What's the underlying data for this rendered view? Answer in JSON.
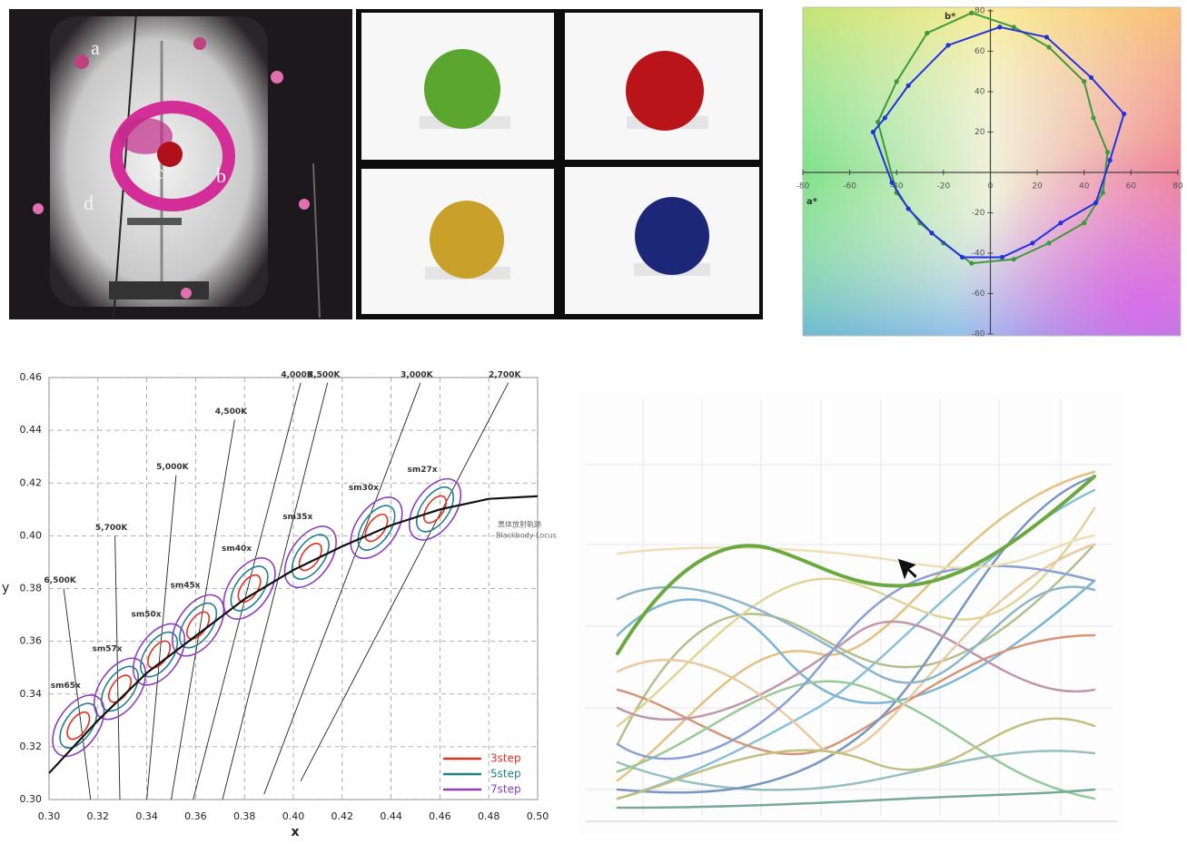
{
  "photo": {
    "labels": [
      "a",
      "b",
      "c",
      "d"
    ]
  },
  "chart_data": [
    {
      "type": "line",
      "xlabel": "a*",
      "ylabel": "b*",
      "xlim": [
        -80,
        80
      ],
      "ylim": [
        -80,
        80
      ],
      "xticks": [
        -80,
        -60,
        -40,
        -20,
        0,
        20,
        40,
        60,
        80
      ],
      "yticks": [
        80,
        60,
        40,
        20,
        -20,
        -40,
        -60,
        -80
      ],
      "series": [
        {
          "color": "#3f9a3a",
          "x": [
            -27,
            -8,
            10,
            25,
            40,
            44,
            50,
            48,
            40,
            25,
            10,
            -8,
            -20,
            -30,
            -40,
            -48,
            -40,
            -27
          ],
          "values": [
            69,
            79,
            72,
            62,
            45,
            27,
            10,
            -10,
            -25,
            -35,
            -43,
            -45,
            -35,
            -25,
            -10,
            25,
            45,
            69
          ]
        },
        {
          "color": "#2233dd",
          "x": [
            4,
            24,
            43,
            57,
            51,
            45,
            30,
            18,
            5,
            -12,
            -25,
            -35,
            -42,
            -50,
            -45,
            -35,
            -18,
            4
          ],
          "values": [
            72,
            67,
            47,
            29,
            6,
            -15,
            -25,
            -35,
            -42,
            -42,
            -30,
            -18,
            -5,
            20,
            27,
            43,
            63,
            72
          ]
        }
      ]
    },
    {
      "type": "chromaticity",
      "xlabel": "x",
      "ylabel": "y",
      "xlim": [
        0.3,
        0.5
      ],
      "ylim": [
        0.3,
        0.46
      ],
      "grid": true,
      "xticks": [
        {
          "value": 0.3,
          "label": "0.30"
        },
        0.32,
        0.34,
        0.36,
        0.38,
        {
          "value": 0.4,
          "label": "0.40"
        },
        0.42,
        0.44,
        0.46,
        0.48,
        {
          "value": 0.5,
          "label": "0.50"
        }
      ],
      "yticks": [
        {
          "value": 0.3,
          "label": "0.30"
        },
        0.32,
        0.34,
        0.36,
        0.38,
        {
          "value": 0.4,
          "label": "0.40"
        },
        0.42,
        0.44,
        0.46
      ],
      "locus": {
        "color": "#111111",
        "x": [
          0.3,
          0.31,
          0.32,
          0.33,
          0.34,
          0.35,
          0.36,
          0.37,
          0.38,
          0.4,
          0.42,
          0.44,
          0.46,
          0.48,
          0.5
        ],
        "values": [
          0.31,
          0.32,
          0.33,
          0.339,
          0.348,
          0.355,
          0.362,
          0.369,
          0.376,
          0.387,
          0.396,
          0.404,
          0.41,
          0.414,
          0.415
        ]
      },
      "locus_labels": [
        "黒体放射軌跡",
        "Blackbody Locus"
      ],
      "labels": [
        "sm65x",
        "sm57x",
        "sm50x",
        "sm45x",
        "sm40x",
        "sm35x",
        "sm30x",
        "sm27x"
      ],
      "x": [
        0.312,
        0.329,
        0.345,
        0.361,
        0.382,
        0.407,
        0.434,
        0.458
      ],
      "series": [
        {
          "name": "3step",
          "color": "#e0301e",
          "values": [
            0.328,
            0.342,
            0.355,
            0.366,
            0.38,
            0.392,
            0.403,
            0.41
          ]
        },
        {
          "name": "5step",
          "color": "#23808f",
          "values": [
            0.328,
            0.342,
            0.355,
            0.366,
            0.38,
            0.392,
            0.403,
            0.41
          ]
        },
        {
          "name": "7step",
          "color": "#8b3fbf",
          "values": [
            0.328,
            0.342,
            0.355,
            0.366,
            0.38,
            0.392,
            0.403,
            0.41
          ]
        }
      ],
      "isotherms": [
        {
          "label": "6,500K",
          "x": [
            0.306,
            0.317
          ],
          "values": [
            0.38,
            0.3
          ]
        },
        {
          "label": "5,700K",
          "x": [
            0.327,
            0.329
          ],
          "values": [
            0.4,
            0.3
          ]
        },
        {
          "label": "5,000K",
          "x": [
            0.352,
            0.34
          ],
          "values": [
            0.423,
            0.3
          ]
        },
        {
          "label": "4,500K",
          "x": [
            0.376,
            0.35
          ],
          "values": [
            0.444,
            0.3
          ]
        },
        {
          "label": "4,000K",
          "x": [
            0.403,
            0.359
          ],
          "values": [
            0.458,
            0.3
          ]
        },
        {
          "label": "3,500K",
          "x": [
            0.414,
            0.371
          ],
          "values": [
            0.458,
            0.3
          ]
        },
        {
          "label": "3,000K",
          "x": [
            0.452,
            0.388
          ],
          "values": [
            0.458,
            0.302
          ]
        },
        {
          "label": "2,700K",
          "x": [
            0.488,
            0.403
          ],
          "values": [
            0.458,
            0.307
          ]
        }
      ]
    }
  ]
}
